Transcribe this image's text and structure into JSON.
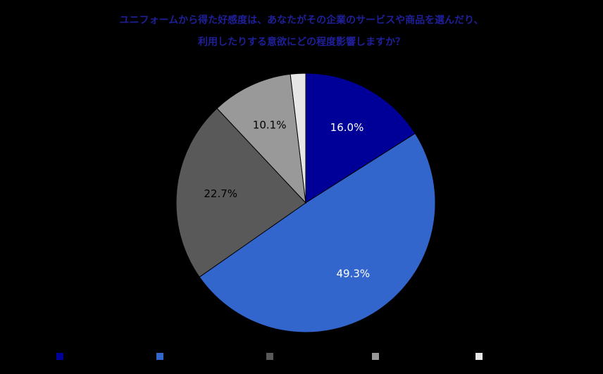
{
  "chart_data": {
    "type": "pie",
    "title_lines": [
      "ユニフォームから得た好感度は、あなたがその企業のサービスや商品を選んだり、",
      "利用したりする意欲にどの程度影響しますか？"
    ],
    "slices": [
      {
        "name": "",
        "value": 16.0,
        "label": "16.0%",
        "color": "#000099",
        "label_color": "#ffffff"
      },
      {
        "name": "",
        "value": 49.3,
        "label": "49.3%",
        "color": "#3366cc",
        "label_color": "#ffffff"
      },
      {
        "name": "",
        "value": 22.7,
        "label": "22.7%",
        "color": "#595959",
        "label_color": "#000000"
      },
      {
        "name": "",
        "value": 10.1,
        "label": "10.1%",
        "color": "#999999",
        "label_color": "#000000"
      },
      {
        "name": "",
        "value": 1.9,
        "label": "",
        "color": "#e6e6e6",
        "label_color": "#000000"
      }
    ],
    "legend_position": "bottom"
  }
}
